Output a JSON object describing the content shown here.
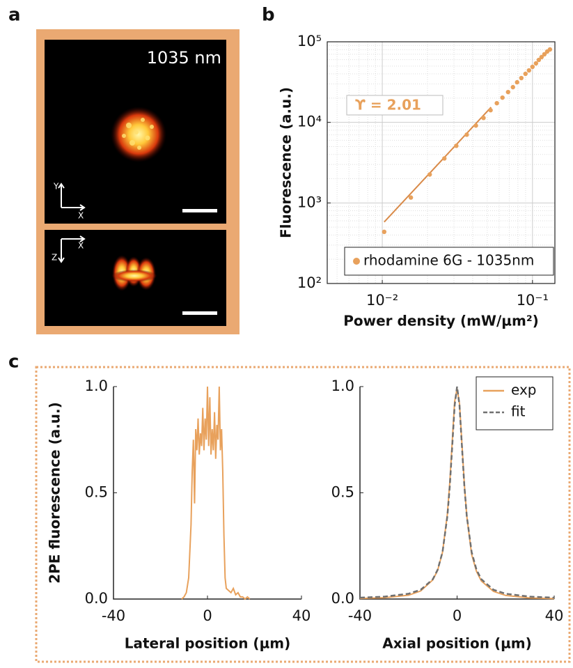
{
  "panel_labels": [
    "a",
    "b",
    "c"
  ],
  "image_panel": {
    "label": "1035 nm",
    "top_axes": [
      "Y",
      "X"
    ],
    "bottom_axes": [
      "Z",
      "X"
    ]
  },
  "chart_data": [
    {
      "type": "scatter",
      "x_label": "Power density (mW/µm²)",
      "y_label": "Fluorescence (a.u.)",
      "annotation": "ϒ = 2.01",
      "log_x": true,
      "log_y": true,
      "grid": true,
      "legend": "lower right",
      "xlim": [
        0.0043,
        0.141
      ],
      "ylim": [
        100,
        100000
      ],
      "xticks": [
        {
          "value": 0.01,
          "label": "10⁻²"
        },
        {
          "value": 0.1,
          "label": "10⁻¹"
        }
      ],
      "yticks": [
        {
          "value": 100,
          "label": "10²"
        },
        {
          "value": 1000,
          "label": "10³"
        },
        {
          "value": 10000,
          "label": "10⁴"
        },
        {
          "value": 100000,
          "label": "10⁵"
        }
      ],
      "series": [
        {
          "name": "rhodamine 6G - 1035nm",
          "color": "#e8a15c",
          "x": [
            0.0103,
            0.0155,
            0.0207,
            0.0259,
            0.0311,
            0.0365,
            0.042,
            0.0472,
            0.0526,
            0.0579,
            0.0631,
            0.0688,
            0.0741,
            0.079,
            0.0843,
            0.0898,
            0.0948,
            0.1,
            0.1055,
            0.1102,
            0.1149,
            0.12,
            0.1253,
            0.1307
          ],
          "values": [
            438,
            1167,
            2254,
            3566,
            5117,
            7031,
            9120,
            11350,
            14150,
            17290,
            20280,
            23770,
            27350,
            31470,
            35480,
            39990,
            44160,
            48860,
            53950,
            59570,
            64570,
            69980,
            75690,
            80350
          ]
        }
      ],
      "fit": {
        "color": "#d98a48",
        "x": [
          0.0103,
          0.053
        ],
        "values": [
          580,
          15400
        ]
      }
    },
    {
      "type": "line",
      "x_label": "Lateral position (µm)",
      "y_label": "2PE fluorescence (a.u.)",
      "xlim": [
        -40,
        40
      ],
      "ylim": [
        0,
        1
      ],
      "xticks": [
        -40,
        0,
        40
      ],
      "yticks": [
        {
          "value": 0,
          "label": "0.0"
        },
        {
          "value": 0.5,
          "label": "0.5"
        },
        {
          "value": 1,
          "label": "1.0"
        }
      ],
      "series": [
        {
          "color": "#e8a15c",
          "style": "solid",
          "x": [
            -11,
            -10,
            -9,
            -8,
            -7,
            -6.5,
            -6,
            -5.5,
            -5,
            -4.5,
            -4,
            -3.5,
            -3,
            -2.5,
            -2,
            -1.5,
            -1,
            -0.5,
            0,
            0.5,
            1,
            1.5,
            2,
            2.5,
            3,
            3.5,
            4,
            4.5,
            5,
            5.5,
            6,
            6.5,
            7,
            7.5,
            8,
            9,
            10,
            11,
            12,
            13,
            14,
            15,
            16,
            17,
            18
          ],
          "values": [
            0,
            0.01,
            0.03,
            0.1,
            0.35,
            0.6,
            0.75,
            0.45,
            0.8,
            0.7,
            0.85,
            0.68,
            0.78,
            0.72,
            0.9,
            0.7,
            0.85,
            0.75,
            1.0,
            0.72,
            0.95,
            0.68,
            0.8,
            0.7,
            0.88,
            0.66,
            0.82,
            0.75,
            1.0,
            0.7,
            0.8,
            0.6,
            0.3,
            0.1,
            0.05,
            0.04,
            0.03,
            0.05,
            0.02,
            0.03,
            0.01,
            0.01,
            0,
            0.01,
            0
          ]
        }
      ]
    },
    {
      "type": "line",
      "x_label": "Axial position (µm)",
      "legend": "upper right",
      "xlim": [
        -40,
        40
      ],
      "ylim": [
        0,
        1
      ],
      "xticks": [
        -40,
        0,
        40
      ],
      "yticks": [
        {
          "value": 0,
          "label": "0.0"
        },
        {
          "value": 0.5,
          "label": "0.5"
        },
        {
          "value": 1,
          "label": "1.0"
        }
      ],
      "series": [
        {
          "name": "exp",
          "color": "#e8a15c",
          "style": "solid",
          "x": [
            -40,
            -30,
            -20,
            -15,
            -10,
            -8,
            -6,
            -4,
            -3,
            -2,
            -1,
            0,
            1,
            2,
            3,
            4,
            6,
            8,
            10,
            15,
            20,
            30,
            40
          ],
          "values": [
            0.003,
            0.006,
            0.018,
            0.038,
            0.09,
            0.135,
            0.22,
            0.4,
            0.55,
            0.74,
            0.93,
            0.99,
            0.92,
            0.73,
            0.54,
            0.39,
            0.21,
            0.13,
            0.085,
            0.036,
            0.017,
            0.005,
            0.002
          ]
        },
        {
          "name": "fit",
          "color": "#707070",
          "style": "dashed",
          "x": [
            -40,
            -30,
            -20,
            -15,
            -10,
            -8,
            -6,
            -4,
            -3,
            -2,
            -1,
            0,
            1,
            2,
            3,
            4,
            6,
            8,
            10,
            15,
            20,
            30,
            40
          ],
          "values": [
            0.0064,
            0.0112,
            0.025,
            0.0435,
            0.093,
            0.138,
            0.221,
            0.39,
            0.532,
            0.719,
            0.911,
            1.0,
            0.911,
            0.719,
            0.532,
            0.39,
            0.221,
            0.138,
            0.093,
            0.0435,
            0.025,
            0.0112,
            0.0064
          ]
        }
      ]
    }
  ]
}
